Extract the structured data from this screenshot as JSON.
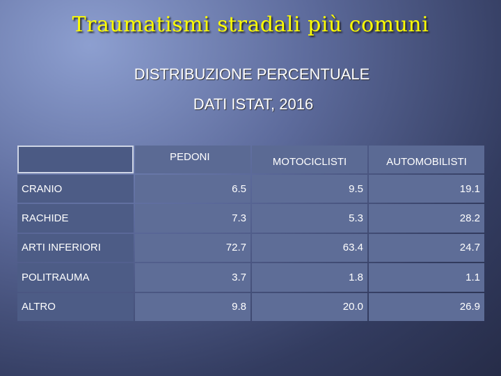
{
  "slide": {
    "title": "Traumatismi stradali più comuni",
    "subtitle_line1": "DISTRIBUZIONE PERCENTUALE",
    "subtitle_line2": "DATI ISTAT, 2016"
  },
  "table": {
    "columns": [
      "PEDONI",
      "MOTOCICLISTI",
      "AUTOMOBILISTI"
    ],
    "rows": [
      {
        "label": "CRANIO",
        "values": [
          "6.5",
          "9.5",
          "19.1"
        ]
      },
      {
        "label": "RACHIDE",
        "values": [
          "7.3",
          "5.3",
          "28.2"
        ]
      },
      {
        "label": "ARTI INFERIORI",
        "values": [
          "72.7",
          "63.4",
          "24.7"
        ]
      },
      {
        "label": "POLITRAUMA",
        "values": [
          "3.7",
          "1.8",
          "1.1"
        ]
      },
      {
        "label": "ALTRO",
        "values": [
          "9.8",
          "20.0",
          "26.9"
        ]
      }
    ]
  }
}
